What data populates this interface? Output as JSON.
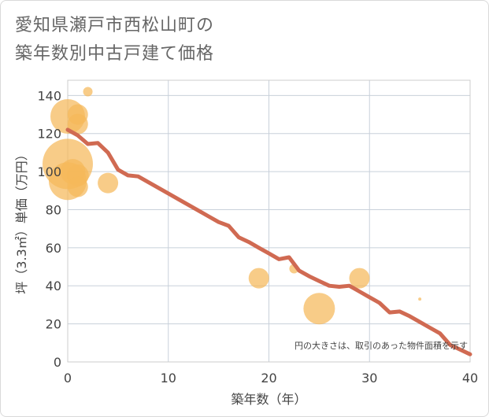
{
  "title_lines": [
    "愛知県瀬戸市西松山町の",
    "築年数別中古戸建て価格"
  ],
  "chart_data": {
    "type": "scatter",
    "title": "愛知県瀬戸市西松山町の築年数別中古戸建て価格",
    "xlabel": "築年数（年）",
    "ylabel": "坪（3.3㎡）単価（万円）",
    "xlim": [
      0,
      40
    ],
    "ylim": [
      0,
      148
    ],
    "x_ticks": [
      0,
      10,
      20,
      30,
      40
    ],
    "y_ticks": [
      0,
      20,
      40,
      60,
      80,
      100,
      120,
      140
    ],
    "grid": true,
    "note": "円の大きさは、取引のあった物件面積を示す",
    "colors": {
      "bubble": "#f5b95a",
      "line": "#d06a52",
      "grid": "#c8d0da",
      "plot_border": "#cccccc"
    },
    "bubbles": [
      {
        "x": 0,
        "y": 129,
        "size": 2.2
      },
      {
        "x": 0,
        "y": 104,
        "size": 3.2
      },
      {
        "x": 0,
        "y": 95,
        "size": 2.4
      },
      {
        "x": 0.5,
        "y": 100,
        "size": 1.6
      },
      {
        "x": 1,
        "y": 130,
        "size": 1.3
      },
      {
        "x": 1,
        "y": 125,
        "size": 1.3
      },
      {
        "x": 1,
        "y": 98,
        "size": 1.4
      },
      {
        "x": 1,
        "y": 92,
        "size": 1.3
      },
      {
        "x": 2,
        "y": 142,
        "size": 0.6
      },
      {
        "x": 4,
        "y": 94,
        "size": 1.3
      },
      {
        "x": 19,
        "y": 44,
        "size": 1.3
      },
      {
        "x": 22.5,
        "y": 49,
        "size": 0.6
      },
      {
        "x": 25,
        "y": 28,
        "size": 2.0
      },
      {
        "x": 29,
        "y": 44,
        "size": 1.3
      },
      {
        "x": 35,
        "y": 33,
        "size": 0.2
      }
    ],
    "series": [
      {
        "name": "trend",
        "x": [
          0,
          1,
          2,
          3,
          4,
          5,
          6,
          7,
          8,
          9,
          10,
          11,
          12,
          13,
          14,
          15,
          16,
          17,
          18,
          19,
          20,
          21,
          22,
          23,
          24,
          25,
          26,
          27,
          28,
          29,
          30,
          31,
          32,
          33,
          34,
          35,
          36,
          37,
          38,
          39,
          40
        ],
        "values": [
          122,
          119,
          114.5,
          115,
          110,
          101,
          98,
          97.5,
          94.5,
          91.5,
          88.5,
          85.5,
          82.5,
          79.5,
          76.5,
          73.5,
          71.5,
          65.5,
          63,
          60,
          57,
          54,
          55,
          48,
          45,
          42.5,
          40,
          39.5,
          40,
          37,
          34,
          31,
          26,
          26.5,
          24,
          21,
          18,
          15,
          9,
          6.5,
          4
        ]
      }
    ]
  }
}
